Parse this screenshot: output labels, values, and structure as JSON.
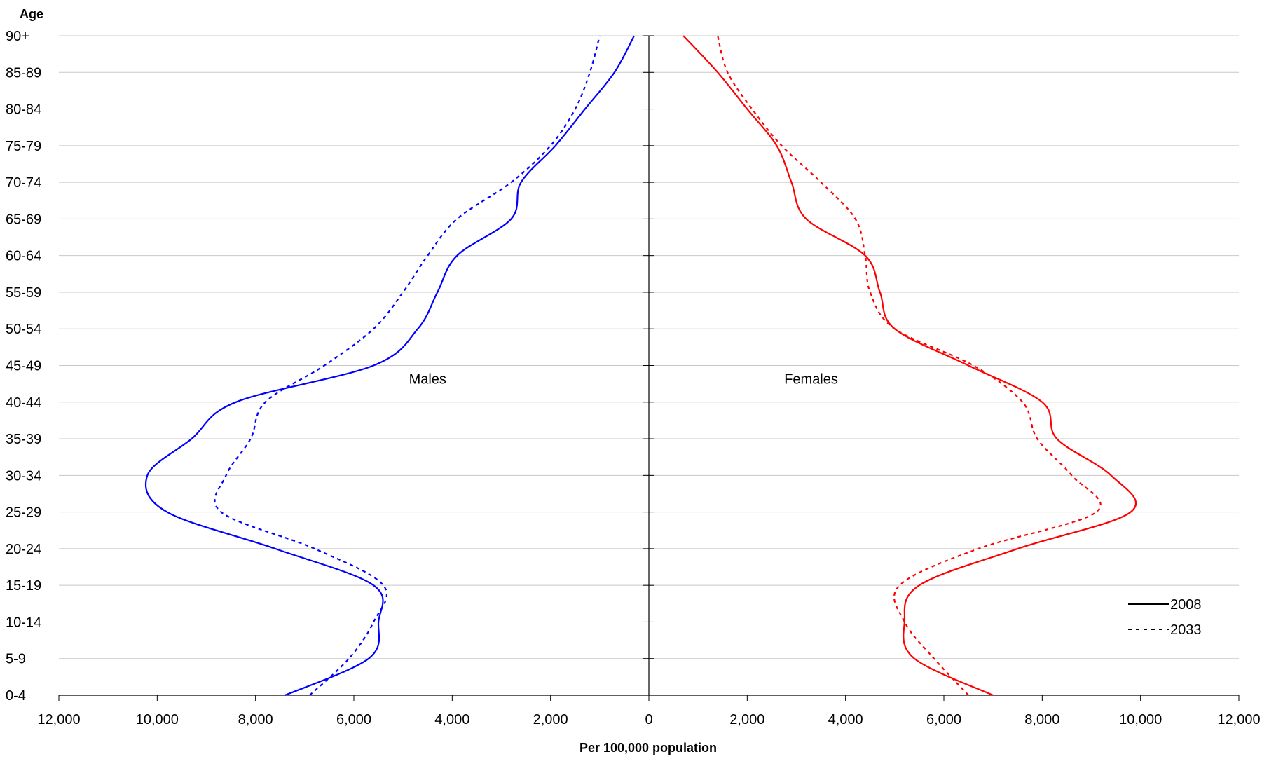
{
  "chart_data": {
    "type": "line",
    "title": "",
    "ylabel": "Age",
    "xlabel": "Per 100,000 population",
    "categories": [
      "0-4",
      "5-9",
      "10-14",
      "15-19",
      "20-24",
      "25-29",
      "30-34",
      "35-39",
      "40-44",
      "45-49",
      "50-54",
      "55-59",
      "60-64",
      "65-69",
      "70-74",
      "75-79",
      "80-84",
      "85-89",
      "90+"
    ],
    "x_ticks": [
      "12,000",
      "10,000",
      "8,000",
      "6,000",
      "4,000",
      "2,000",
      "0",
      "2,000",
      "4,000",
      "6,000",
      "8,000",
      "10,000",
      "12,000"
    ],
    "xlim": [
      -12000,
      12000
    ],
    "grid": true,
    "legend_position": "bottom-right",
    "annotations": [
      {
        "text": "Males",
        "x": -4500,
        "category": "45-49"
      },
      {
        "text": "Females",
        "x": 3300,
        "category": "45-49"
      }
    ],
    "series": [
      {
        "name": "2008",
        "group": "Males",
        "color": "#0000ff",
        "dash": "solid",
        "values": [
          7400,
          5700,
          5500,
          5600,
          7600,
          9800,
          10200,
          9300,
          8400,
          5600,
          4700,
          4300,
          3900,
          2800,
          2600,
          1900,
          1300,
          700,
          300
        ]
      },
      {
        "name": "2033",
        "group": "Males",
        "color": "#0000ff",
        "dash": "dotted",
        "values": [
          6900,
          6100,
          5600,
          5400,
          6800,
          8700,
          8600,
          8100,
          7800,
          6600,
          5600,
          5000,
          4500,
          3900,
          2800,
          2000,
          1500,
          1200,
          1000
        ]
      },
      {
        "name": "2008",
        "group": "Females",
        "color": "#ff0000",
        "dash": "solid",
        "values": [
          7000,
          5400,
          5200,
          5500,
          7500,
          9800,
          9400,
          8300,
          8000,
          6500,
          5000,
          4700,
          4400,
          3200,
          2900,
          2600,
          2000,
          1400,
          700
        ]
      },
      {
        "name": "2033",
        "group": "Females",
        "color": "#ff0000",
        "dash": "dotted",
        "values": [
          6500,
          5800,
          5200,
          5100,
          6700,
          9100,
          8600,
          7900,
          7600,
          6600,
          5000,
          4500,
          4400,
          4200,
          3500,
          2700,
          2100,
          1600,
          1400
        ]
      }
    ],
    "legend": [
      {
        "label": "2008",
        "dash": "solid"
      },
      {
        "label": "2033",
        "dash": "dotted"
      }
    ]
  }
}
